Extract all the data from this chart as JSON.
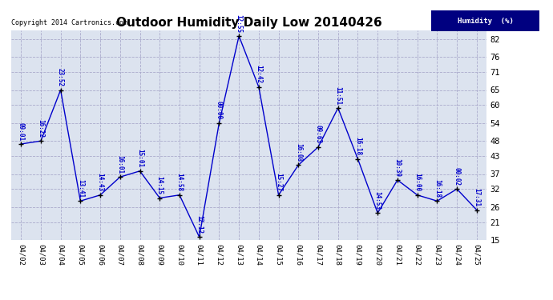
{
  "title": "Outdoor Humidity Daily Low 20140426",
  "copyright": "Copyright 2014 Cartronics.com",
  "legend_label": "Humidity  (%)",
  "x_labels": [
    "04/02",
    "04/03",
    "04/04",
    "04/05",
    "04/06",
    "04/07",
    "04/08",
    "04/09",
    "04/10",
    "04/11",
    "04/12",
    "04/13",
    "04/14",
    "04/15",
    "04/16",
    "04/17",
    "04/18",
    "04/19",
    "04/20",
    "04/21",
    "04/22",
    "04/23",
    "04/24",
    "04/25"
  ],
  "y_values": [
    47,
    48,
    65,
    28,
    30,
    36,
    38,
    29,
    30,
    16,
    54,
    83,
    66,
    30,
    40,
    46,
    59,
    42,
    24,
    35,
    30,
    28,
    32,
    25
  ],
  "time_labels": [
    "09:01",
    "16:22",
    "23:52",
    "13:41",
    "14:43",
    "16:01",
    "15:01",
    "14:15",
    "14:58",
    "12:12",
    "00:00",
    "12:55",
    "12:42",
    "15:27",
    "16:08",
    "09:63",
    "11:51",
    "16:18",
    "14:53",
    "10:39",
    "16:00",
    "16:18",
    "00:02",
    "17:31"
  ],
  "line_color": "#0000cc",
  "marker_color": "#000000",
  "bg_color": "#ffffff",
  "plot_bg_color": "#dce3ef",
  "grid_color": "#aaaacc",
  "ylim": [
    15,
    85
  ],
  "yticks": [
    15,
    21,
    26,
    32,
    37,
    43,
    48,
    54,
    60,
    65,
    71,
    76,
    82
  ],
  "title_fontsize": 11,
  "legend_bg": "#000080",
  "legend_fg": "#ffffff"
}
